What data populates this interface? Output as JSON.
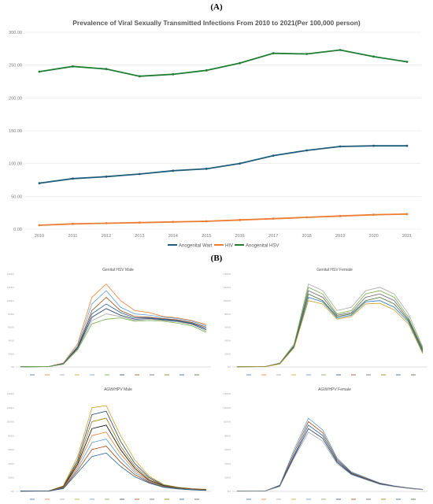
{
  "panels": {
    "a_label": "(A)",
    "b_label": "(B)"
  },
  "chart_data": [
    {
      "type": "line",
      "title": "Prevalence of Viral Sexually Transmitted Infections From 2010 to 2021(Per 100,000 person)",
      "x": [
        "2010",
        "2011",
        "2012",
        "2013",
        "2014",
        "2015",
        "2016",
        "2017",
        "2018",
        "2019",
        "2020",
        "2021"
      ],
      "ylim": [
        0,
        300
      ],
      "yticks": [
        "0.00",
        "50.00",
        "100.00",
        "150.00",
        "200.00",
        "250.00",
        "300.00"
      ],
      "grid": true,
      "legend": "bottom",
      "series": [
        {
          "name": "Anogenital Wart",
          "color": "#1f5c7a",
          "values": [
            70,
            77,
            80,
            84,
            89,
            92,
            100,
            112,
            120,
            126,
            127,
            127
          ]
        },
        {
          "name": "HIV",
          "color": "#ed7d31",
          "values": [
            6,
            8,
            9,
            10,
            11,
            12,
            14,
            16,
            18,
            20,
            22,
            23
          ]
        },
        {
          "name": "Anogenital HSV",
          "color": "#1e7d32",
          "values": [
            240,
            248,
            244,
            233,
            236,
            242,
            253,
            268,
            267,
            273,
            263,
            255
          ]
        }
      ]
    },
    {
      "type": "line",
      "title": "Genital HSV Male",
      "categories": 14,
      "ylim": [
        0,
        1400
      ],
      "yticks": [
        "0.0",
        "200.0",
        "400.0",
        "600.0",
        "800.0",
        "1000.0",
        "1200.0",
        "1400.0"
      ],
      "legend": "bottom",
      "peaks": [
        [
          5,
          5,
          8,
          60,
          350,
          1050,
          1250,
          1000,
          850,
          820,
          760,
          740,
          700,
          640
        ],
        [
          4,
          5,
          7,
          55,
          320,
          950,
          1150,
          900,
          800,
          780,
          750,
          730,
          690,
          620
        ],
        [
          4,
          5,
          7,
          50,
          300,
          850,
          1050,
          850,
          760,
          750,
          730,
          710,
          670,
          600
        ],
        [
          4,
          5,
          7,
          48,
          290,
          800,
          950,
          820,
          740,
          740,
          720,
          700,
          660,
          580
        ],
        [
          3,
          4,
          6,
          45,
          280,
          750,
          880,
          780,
          720,
          730,
          710,
          690,
          650,
          560
        ],
        [
          3,
          4,
          6,
          42,
          270,
          700,
          800,
          760,
          700,
          720,
          700,
          680,
          640,
          540
        ],
        [
          3,
          4,
          6,
          40,
          260,
          650,
          720,
          740,
          690,
          700,
          690,
          660,
          620,
          520
        ]
      ]
    },
    {
      "type": "line",
      "title": "Genital HSV Female",
      "categories": 14,
      "ylim": [
        0,
        1400
      ],
      "yticks": [
        "0.0",
        "200.0",
        "400.0",
        "600.0",
        "800.0",
        "1000.0",
        "1200.0",
        "1400.0"
      ],
      "legend": "bottom",
      "peaks": [
        [
          5,
          5,
          8,
          60,
          350,
          1250,
          1150,
          850,
          900,
          1150,
          1200,
          1100,
          800,
          300
        ],
        [
          4,
          5,
          7,
          55,
          330,
          1200,
          1100,
          800,
          850,
          1100,
          1150,
          1050,
          750,
          280
        ],
        [
          4,
          5,
          7,
          52,
          320,
          1150,
          1050,
          780,
          820,
          1050,
          1100,
          1000,
          720,
          260
        ],
        [
          4,
          5,
          7,
          50,
          310,
          1100,
          1000,
          760,
          800,
          1000,
          1050,
          950,
          700,
          240
        ],
        [
          3,
          4,
          6,
          48,
          300,
          1050,
          980,
          740,
          780,
          980,
          1000,
          900,
          680,
          220
        ],
        [
          3,
          4,
          6,
          45,
          290,
          1000,
          950,
          720,
          760,
          950,
          960,
          860,
          650,
          200
        ]
      ]
    },
    {
      "type": "line",
      "title": "AGW/HPV Male",
      "categories": 14,
      "ylim": [
        0,
        1400
      ],
      "yticks": [
        "0.0",
        "200.0",
        "400.0",
        "600.0",
        "800.0",
        "1000.0",
        "1200.0",
        "1400.0"
      ],
      "legend": "bottom",
      "peaks": [
        [
          5,
          5,
          8,
          80,
          500,
          1200,
          1230,
          800,
          450,
          220,
          100,
          60,
          40,
          30
        ],
        [
          4,
          5,
          7,
          70,
          450,
          1100,
          1150,
          720,
          400,
          200,
          90,
          55,
          35,
          25
        ],
        [
          4,
          5,
          7,
          65,
          420,
          1000,
          1050,
          650,
          360,
          180,
          85,
          50,
          32,
          22
        ],
        [
          4,
          5,
          7,
          60,
          390,
          900,
          950,
          600,
          330,
          160,
          80,
          45,
          30,
          20
        ],
        [
          3,
          4,
          6,
          55,
          360,
          800,
          850,
          540,
          300,
          150,
          75,
          42,
          28,
          18
        ],
        [
          3,
          4,
          6,
          50,
          330,
          700,
          750,
          480,
          270,
          140,
          70,
          40,
          26,
          16
        ],
        [
          3,
          4,
          6,
          45,
          300,
          600,
          650,
          420,
          240,
          130,
          65,
          38,
          24,
          15
        ],
        [
          3,
          4,
          6,
          40,
          270,
          500,
          550,
          360,
          210,
          120,
          60,
          36,
          22,
          14
        ]
      ]
    },
    {
      "type": "line",
      "title": "AGW/HPV Female",
      "categories": 14,
      "ylim": [
        0,
        1400
      ],
      "yticks": [
        "0.0",
        "200.0",
        "400.0",
        "600.0",
        "800.0",
        "1000.0",
        "1200.0",
        "1400.0"
      ],
      "legend": "bottom",
      "peaks": [
        [
          5,
          5,
          8,
          90,
          600,
          1050,
          880,
          480,
          280,
          200,
          120,
          80,
          50,
          30
        ],
        [
          4,
          5,
          7,
          85,
          560,
          1000,
          840,
          460,
          270,
          190,
          115,
          75,
          48,
          28
        ],
        [
          4,
          5,
          7,
          80,
          520,
          950,
          800,
          440,
          260,
          180,
          110,
          72,
          46,
          26
        ],
        [
          4,
          5,
          7,
          75,
          500,
          900,
          760,
          420,
          250,
          175,
          105,
          70,
          44,
          25
        ],
        [
          3,
          4,
          6,
          70,
          480,
          850,
          720,
          400,
          240,
          170,
          100,
          68,
          42,
          24
        ]
      ]
    }
  ]
}
